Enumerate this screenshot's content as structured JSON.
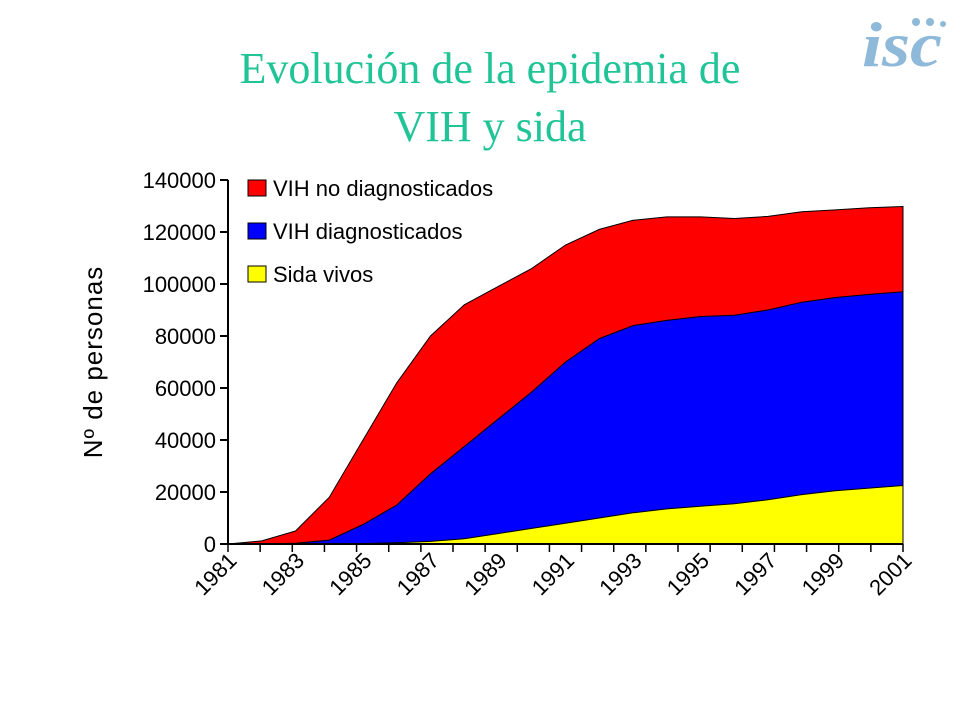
{
  "slide": {
    "title_line1": "Evolución de la epidemia de",
    "title_line2": "VIH y sida",
    "logo_text": "isc",
    "title_color": "#20c497",
    "logo_color": "#8fb9d8"
  },
  "chart_data": {
    "type": "area",
    "stacked": true,
    "title": "",
    "xlabel": "",
    "ylabel": "Nº de personas",
    "x": [
      1981,
      1982,
      1983,
      1984,
      1985,
      1986,
      1987,
      1988,
      1989,
      1990,
      1991,
      1992,
      1993,
      1994,
      1995,
      1996,
      1997,
      1998,
      1999,
      2000,
      2001
    ],
    "x_tick_labels": [
      "1981",
      "1983",
      "1985",
      "1987",
      "1989",
      "1991",
      "1993",
      "1995",
      "1997",
      "1999",
      "2001"
    ],
    "ylim": [
      0,
      140000
    ],
    "y_ticks": [
      "0",
      "20000",
      "40000",
      "60000",
      "80000",
      "100000",
      "120000",
      "140000"
    ],
    "legend_position": "top-left",
    "grid": false,
    "series": [
      {
        "name": "VIH no diagnosticados",
        "color": "#ff0000",
        "cumulative_top": [
          0,
          1200,
          5000,
          18000,
          40000,
          62000,
          80000,
          92000,
          99000,
          106000,
          115000,
          121000,
          124500,
          125800,
          125800,
          125200,
          126000,
          127800,
          128500,
          129300,
          129800
        ]
      },
      {
        "name": "VIH diagnosticados",
        "color": "#0000ff",
        "cumulative_top": [
          0,
          0,
          300,
          1500,
          7500,
          15000,
          27000,
          37500,
          48000,
          58500,
          70000,
          79000,
          84000,
          86000,
          87500,
          88000,
          90000,
          93000,
          94800,
          96000,
          97000
        ]
      },
      {
        "name": "Sida vivos",
        "color": "#ffff00",
        "cumulative_top": [
          0,
          0,
          0,
          0,
          200,
          500,
          1000,
          2000,
          4000,
          6000,
          8000,
          10000,
          12000,
          13500,
          14500,
          15500,
          17000,
          19000,
          20500,
          21500,
          22500
        ]
      }
    ]
  }
}
